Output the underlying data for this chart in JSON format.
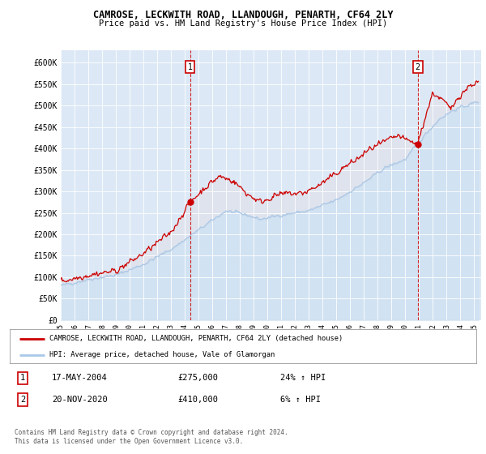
{
  "title": "CAMROSE, LECKWITH ROAD, LLANDOUGH, PENARTH, CF64 2LY",
  "subtitle": "Price paid vs. HM Land Registry's House Price Index (HPI)",
  "xlim_start": 1995.0,
  "xlim_end": 2025.5,
  "ylim_min": 0,
  "ylim_max": 630000,
  "yticks": [
    0,
    50000,
    100000,
    150000,
    200000,
    250000,
    300000,
    350000,
    400000,
    450000,
    500000,
    550000,
    600000
  ],
  "ytick_labels": [
    "£0",
    "£50K",
    "£100K",
    "£150K",
    "£200K",
    "£250K",
    "£300K",
    "£350K",
    "£400K",
    "£450K",
    "£500K",
    "£550K",
    "£600K"
  ],
  "xticks": [
    1995,
    1996,
    1997,
    1998,
    1999,
    2000,
    2001,
    2002,
    2003,
    2004,
    2005,
    2006,
    2007,
    2008,
    2009,
    2010,
    2011,
    2012,
    2013,
    2014,
    2015,
    2016,
    2017,
    2018,
    2019,
    2020,
    2021,
    2022,
    2023,
    2024,
    2025
  ],
  "hpi_color": "#a8c8e8",
  "price_color": "#cc0000",
  "plot_bg_color": "#dce8f5",
  "marker1_x": 2004.38,
  "marker1_y": 275000,
  "marker2_x": 2020.9,
  "marker2_y": 410000,
  "marker1_label": "1",
  "marker2_label": "2",
  "marker1_date": "17-MAY-2004",
  "marker1_price": "£275,000",
  "marker1_hpi": "24% ↑ HPI",
  "marker2_date": "20-NOV-2020",
  "marker2_price": "£410,000",
  "marker2_hpi": "6% ↑ HPI",
  "legend_line1": "CAMROSE, LECKWITH ROAD, LLANDOUGH, PENARTH, CF64 2LY (detached house)",
  "legend_line2": "HPI: Average price, detached house, Vale of Glamorgan",
  "footnote": "Contains HM Land Registry data © Crown copyright and database right 2024.\nThis data is licensed under the Open Government Licence v3.0."
}
